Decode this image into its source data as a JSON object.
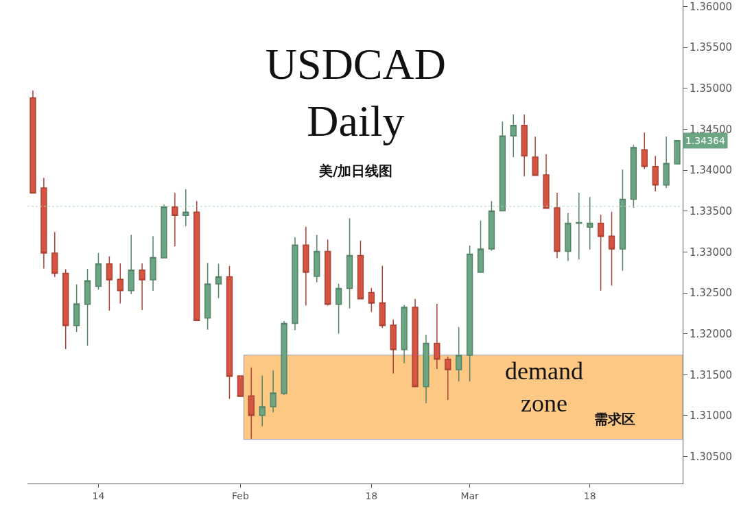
{
  "chart_data": {
    "type": "candlestick",
    "title": "USDCAD\nDaily",
    "subtitle": "美/加日线图",
    "categories": [
      null,
      null,
      null,
      null,
      null,
      null,
      "14",
      null,
      null,
      null,
      null,
      null,
      null,
      null,
      null,
      null,
      null,
      null,
      null,
      "Feb",
      null,
      null,
      null,
      null,
      null,
      null,
      null,
      null,
      null,
      null,
      null,
      "18",
      null,
      null,
      null,
      null,
      null,
      null,
      null,
      null,
      "Mar",
      null,
      null,
      null,
      null,
      null,
      null,
      null,
      null,
      null,
      null,
      "18",
      null,
      null,
      null,
      null,
      null,
      null,
      null,
      null
    ],
    "ohlc": [
      [
        1.34884,
        1.34976,
        1.3372,
        1.3372
      ],
      [
        1.33784,
        1.33907,
        1.32798,
        1.32986
      ],
      [
        1.32986,
        1.33245,
        1.32695,
        1.32739
      ],
      [
        1.32739,
        1.3279,
        1.31813,
        1.321
      ],
      [
        1.321,
        1.32603,
        1.32022,
        1.32366
      ],
      [
        1.3236,
        1.32793,
        1.31855,
        1.3265
      ],
      [
        1.3258,
        1.32988,
        1.32538,
        1.32854
      ],
      [
        1.32854,
        1.32946,
        1.32282,
        1.32659
      ],
      [
        1.32667,
        1.3286,
        1.3237,
        1.32527
      ],
      [
        1.32527,
        1.33208,
        1.32485,
        1.32779
      ],
      [
        1.32779,
        1.3286,
        1.3229,
        1.32659
      ],
      [
        1.32659,
        1.33195,
        1.32525,
        1.32932
      ],
      [
        1.32929,
        1.3358,
        1.32929,
        1.33552
      ],
      [
        1.33552,
        1.33723,
        1.33069,
        1.33446
      ],
      [
        1.33446,
        1.33767,
        1.33315,
        1.33488
      ],
      [
        1.33488,
        1.33622,
        1.32164,
        1.32164
      ],
      [
        1.32192,
        1.32868,
        1.3205,
        1.32609
      ],
      [
        1.32609,
        1.32857,
        1.32435,
        1.32697
      ],
      [
        1.32697,
        1.32829,
        1.31206,
        1.3148
      ],
      [
        1.31486,
        1.31486,
        1.31235,
        1.31235
      ],
      [
        1.3124,
        1.31589,
        1.30718,
        1.31002
      ],
      [
        1.31002,
        1.31491,
        1.30871,
        1.31109
      ],
      [
        1.31109,
        1.31555,
        1.31039,
        1.31276
      ],
      [
        1.31271,
        1.32156,
        1.31254,
        1.32128
      ],
      [
        1.32128,
        1.33181,
        1.32044,
        1.33086
      ],
      [
        1.33086,
        1.33309,
        1.32345,
        1.32751
      ],
      [
        1.32701,
        1.33208,
        1.3263,
        1.33007
      ],
      [
        1.33007,
        1.33153,
        1.32345,
        1.3236
      ],
      [
        1.3236,
        1.32611,
        1.32002,
        1.32555
      ],
      [
        1.32555,
        1.33413,
        1.3231,
        1.32957
      ],
      [
        1.32957,
        1.33139,
        1.32427,
        1.32427
      ],
      [
        1.32505,
        1.32561,
        1.32268,
        1.32374
      ],
      [
        1.32379,
        1.32831,
        1.32072,
        1.321
      ],
      [
        1.32106,
        1.32175,
        1.31514,
        1.31807
      ],
      [
        1.31807,
        1.32351,
        1.31639,
        1.32324
      ],
      [
        1.32324,
        1.32427,
        1.31354,
        1.31354
      ],
      [
        1.31354,
        1.31989,
        1.31151,
        1.31885
      ],
      [
        1.31885,
        1.32366,
        1.3157,
        1.31689
      ],
      [
        1.31689,
        1.31723,
        1.31193,
        1.31561
      ],
      [
        1.31561,
        1.32081,
        1.31416,
        1.31737
      ],
      [
        1.31737,
        1.33078,
        1.31416,
        1.32974
      ],
      [
        1.32751,
        1.33384,
        1.32751,
        1.33036
      ],
      [
        1.33036,
        1.33622,
        1.33016,
        1.33502
      ],
      [
        1.33502,
        1.34594,
        1.33502,
        1.34418
      ],
      [
        1.34418,
        1.34683,
        1.34158,
        1.34549
      ],
      [
        1.34549,
        1.34683,
        1.33924,
        1.34172
      ],
      [
        1.34161,
        1.3441,
        1.33937,
        1.33937
      ],
      [
        1.33943,
        1.34195,
        1.33533,
        1.33533
      ],
      [
        1.33539,
        1.33725,
        1.32924,
        1.33007
      ],
      [
        1.33007,
        1.33477,
        1.3289,
        1.33351
      ],
      [
        1.33352,
        1.33725,
        1.3291,
        1.3336
      ],
      [
        1.33304,
        1.33673,
        1.3303,
        1.33351
      ],
      [
        1.33351,
        1.33455,
        1.32527,
        1.33189
      ],
      [
        1.33195,
        1.33491,
        1.32588,
        1.33036
      ],
      [
        1.33036,
        1.34008,
        1.3277,
        1.33644
      ],
      [
        1.33644,
        1.34306,
        1.33539,
        1.34278
      ],
      [
        1.34251,
        1.3446,
        1.34013,
        1.34046
      ],
      [
        1.34046,
        1.34175,
        1.33742,
        1.33818
      ],
      [
        1.33818,
        1.34412,
        1.33782,
        1.34083
      ],
      [
        1.34077,
        1.34364,
        1.34077,
        1.34364
      ]
    ],
    "colors": [
      "#d75442",
      "#d75442",
      "#d75442",
      "#d75442",
      "#6ba583",
      "#6ba583",
      "#6ba583",
      "#d75442",
      "#d75442",
      "#6ba583",
      "#d75442",
      "#6ba583",
      "#6ba583",
      "#d75442",
      "#6ba583",
      "#d75442",
      "#6ba583",
      "#6ba583",
      "#d75442",
      "#d75442",
      "#d75442",
      "#6ba583",
      "#6ba583",
      "#6ba583",
      "#6ba583",
      "#d75442",
      "#6ba583",
      "#d75442",
      "#6ba583",
      "#6ba583",
      "#d75442",
      "#d75442",
      "#d75442",
      "#d75442",
      "#6ba583",
      "#d75442",
      "#6ba583",
      "#d75442",
      "#d75442",
      "#6ba583",
      "#6ba583",
      "#6ba583",
      "#6ba583",
      "#6ba583",
      "#6ba583",
      "#d75442",
      "#d75442",
      "#d75442",
      "#d75442",
      "#6ba583",
      "#558468",
      "#6ba583",
      "#d75442",
      "#d75442",
      "#6ba583",
      "#6ba583",
      "#d75442",
      "#d75442",
      "#6ba583",
      "#6ba583"
    ],
    "ylim": [
      1.3017,
      1.3608
    ],
    "yticks": [
      {
        "value": 1.305,
        "label": "1.30500"
      },
      {
        "value": 1.31,
        "label": "1.31000"
      },
      {
        "value": 1.315,
        "label": "1.31500"
      },
      {
        "value": 1.32,
        "label": "1.32000"
      },
      {
        "value": 1.325,
        "label": "1.32500"
      },
      {
        "value": 1.33,
        "label": "1.33000"
      },
      {
        "value": 1.335,
        "label": "1.33500"
      },
      {
        "value": 1.34,
        "label": "1.34000"
      },
      {
        "value": 1.345,
        "label": "1.34500"
      },
      {
        "value": 1.35,
        "label": "1.35000"
      },
      {
        "value": 1.355,
        "label": "1.35500"
      },
      {
        "value": 1.36,
        "label": "1.36000"
      }
    ],
    "ref_lines": [
      {
        "axis": "y",
        "value": 1.33558,
        "color": "#a9d6bb",
        "line_style": "dotted"
      }
    ],
    "bands": [
      {
        "axis": "y",
        "from": 1.30709,
        "to": 1.3174,
        "label": "demand\nzone",
        "color": "#fdc883"
      }
    ],
    "annotations": [
      "需求区",
      "1.34364"
    ],
    "grid": false
  }
}
